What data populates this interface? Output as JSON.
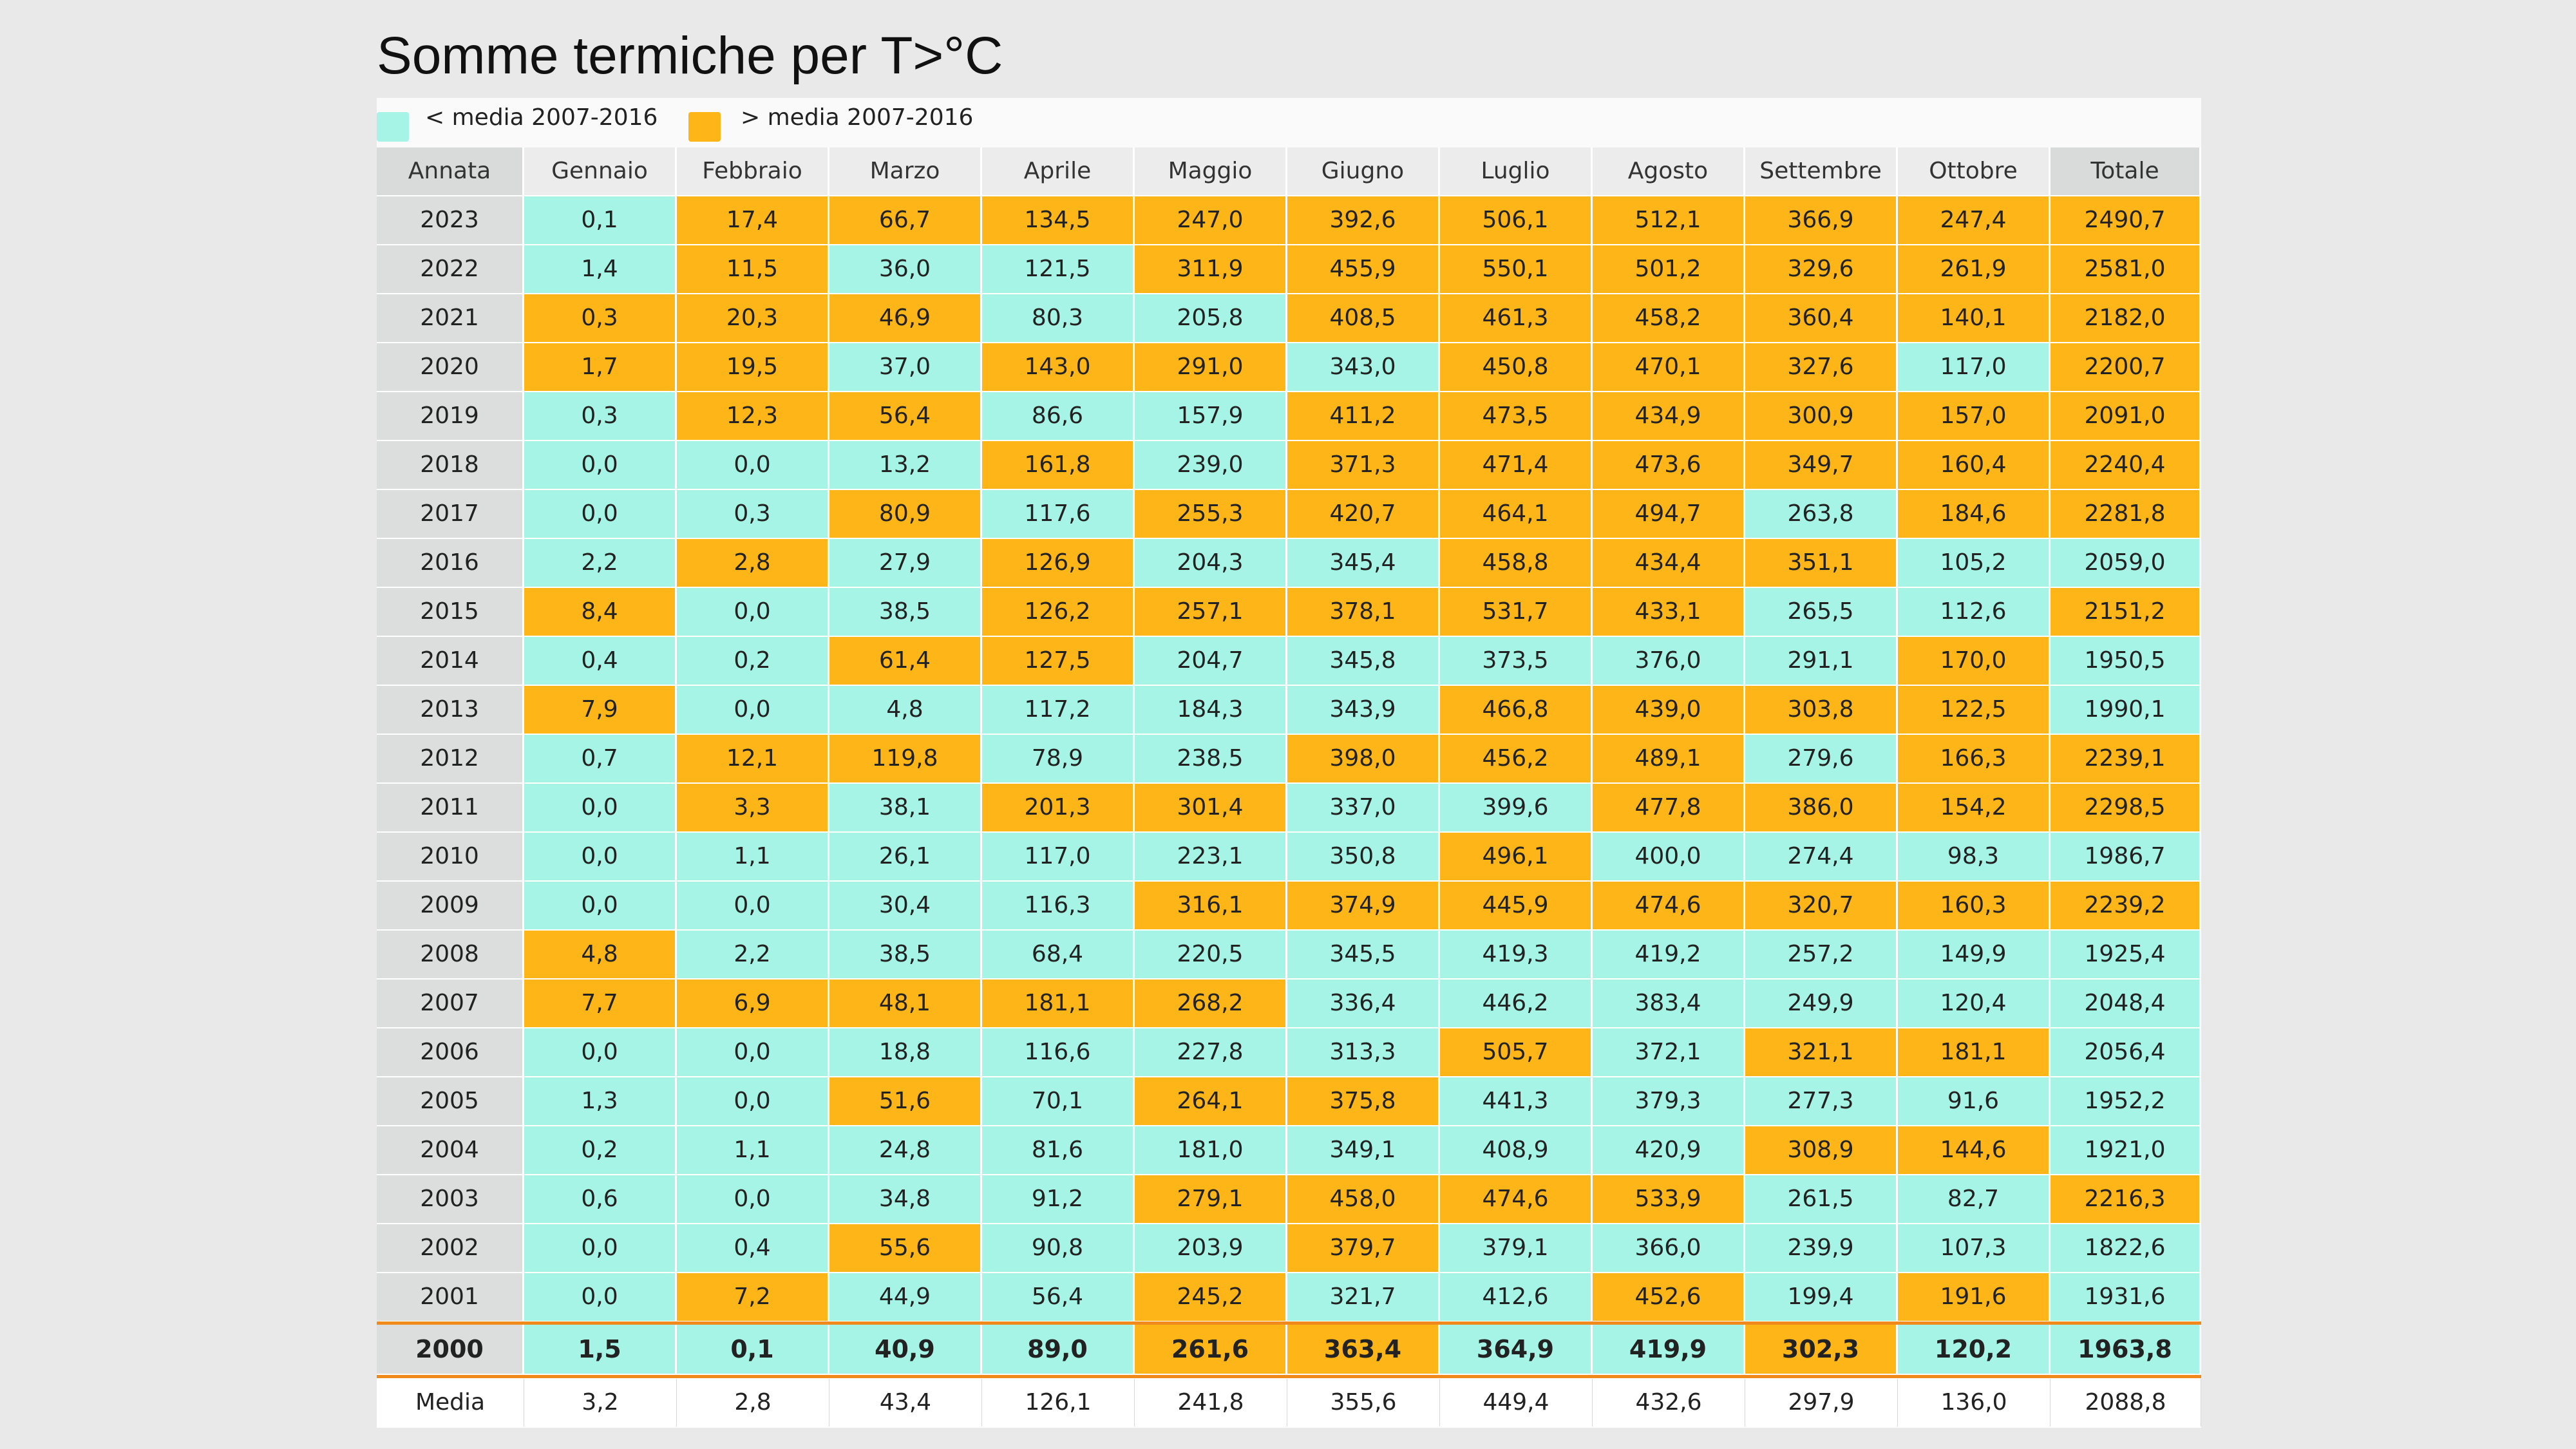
{
  "title": "Somme termiche per T>°C",
  "legend": {
    "below_label": "< media 2007-2016",
    "above_label": "> media 2007-2016"
  },
  "colors": {
    "below": "#a6f4e6",
    "above": "#fdb517",
    "header": "#ececec",
    "year_column": "#dcdedd",
    "separator": "#f08a1c"
  },
  "chart_data": {
    "type": "table",
    "title": "Somme termiche per T>°C",
    "columns": [
      "Annata",
      "Gennaio",
      "Febbraio",
      "Marzo",
      "Aprile",
      "Maggio",
      "Giugno",
      "Luglio",
      "Agosto",
      "Settembre",
      "Ottobre",
      "Totale"
    ],
    "legend": [
      {
        "key": "below",
        "label": "< media 2007-2016"
      },
      {
        "key": "above",
        "label": "> media 2007-2016"
      }
    ],
    "rows": [
      {
        "year": "2023",
        "values": [
          "0,1",
          "17,4",
          "66,7",
          "134,5",
          "247,0",
          "392,6",
          "506,1",
          "512,1",
          "366,9",
          "247,4",
          "2490,7"
        ],
        "highlight": [
          "below",
          "above",
          "above",
          "above",
          "above",
          "above",
          "above",
          "above",
          "above",
          "above",
          "above"
        ]
      },
      {
        "year": "2022",
        "values": [
          "1,4",
          "11,5",
          "36,0",
          "121,5",
          "311,9",
          "455,9",
          "550,1",
          "501,2",
          "329,6",
          "261,9",
          "2581,0"
        ],
        "highlight": [
          "below",
          "above",
          "below",
          "below",
          "above",
          "above",
          "above",
          "above",
          "above",
          "above",
          "above"
        ]
      },
      {
        "year": "2021",
        "values": [
          "0,3",
          "20,3",
          "46,9",
          "80,3",
          "205,8",
          "408,5",
          "461,3",
          "458,2",
          "360,4",
          "140,1",
          "2182,0"
        ],
        "highlight": [
          "above",
          "above",
          "above",
          "below",
          "below",
          "above",
          "above",
          "above",
          "above",
          "above",
          "above"
        ]
      },
      {
        "year": "2020",
        "values": [
          "1,7",
          "19,5",
          "37,0",
          "143,0",
          "291,0",
          "343,0",
          "450,8",
          "470,1",
          "327,6",
          "117,0",
          "2200,7"
        ],
        "highlight": [
          "above",
          "above",
          "below",
          "above",
          "above",
          "below",
          "above",
          "above",
          "above",
          "below",
          "above"
        ]
      },
      {
        "year": "2019",
        "values": [
          "0,3",
          "12,3",
          "56,4",
          "86,6",
          "157,9",
          "411,2",
          "473,5",
          "434,9",
          "300,9",
          "157,0",
          "2091,0"
        ],
        "highlight": [
          "below",
          "above",
          "above",
          "below",
          "below",
          "above",
          "above",
          "above",
          "above",
          "above",
          "above"
        ]
      },
      {
        "year": "2018",
        "values": [
          "0,0",
          "0,0",
          "13,2",
          "161,8",
          "239,0",
          "371,3",
          "471,4",
          "473,6",
          "349,7",
          "160,4",
          "2240,4"
        ],
        "highlight": [
          "below",
          "below",
          "below",
          "above",
          "below",
          "above",
          "above",
          "above",
          "above",
          "above",
          "above"
        ]
      },
      {
        "year": "2017",
        "values": [
          "0,0",
          "0,3",
          "80,9",
          "117,6",
          "255,3",
          "420,7",
          "464,1",
          "494,7",
          "263,8",
          "184,6",
          "2281,8"
        ],
        "highlight": [
          "below",
          "below",
          "above",
          "below",
          "above",
          "above",
          "above",
          "above",
          "below",
          "above",
          "above"
        ]
      },
      {
        "year": "2016",
        "values": [
          "2,2",
          "2,8",
          "27,9",
          "126,9",
          "204,3",
          "345,4",
          "458,8",
          "434,4",
          "351,1",
          "105,2",
          "2059,0"
        ],
        "highlight": [
          "below",
          "above",
          "below",
          "above",
          "below",
          "below",
          "above",
          "above",
          "above",
          "below",
          "below"
        ]
      },
      {
        "year": "2015",
        "values": [
          "8,4",
          "0,0",
          "38,5",
          "126,2",
          "257,1",
          "378,1",
          "531,7",
          "433,1",
          "265,5",
          "112,6",
          "2151,2"
        ],
        "highlight": [
          "above",
          "below",
          "below",
          "above",
          "above",
          "above",
          "above",
          "above",
          "below",
          "below",
          "above"
        ]
      },
      {
        "year": "2014",
        "values": [
          "0,4",
          "0,2",
          "61,4",
          "127,5",
          "204,7",
          "345,8",
          "373,5",
          "376,0",
          "291,1",
          "170,0",
          "1950,5"
        ],
        "highlight": [
          "below",
          "below",
          "above",
          "above",
          "below",
          "below",
          "below",
          "below",
          "below",
          "above",
          "below"
        ]
      },
      {
        "year": "2013",
        "values": [
          "7,9",
          "0,0",
          "4,8",
          "117,2",
          "184,3",
          "343,9",
          "466,8",
          "439,0",
          "303,8",
          "122,5",
          "1990,1"
        ],
        "highlight": [
          "above",
          "below",
          "below",
          "below",
          "below",
          "below",
          "above",
          "above",
          "above",
          "above",
          "below"
        ]
      },
      {
        "year": "2012",
        "values": [
          "0,7",
          "12,1",
          "119,8",
          "78,9",
          "238,5",
          "398,0",
          "456,2",
          "489,1",
          "279,6",
          "166,3",
          "2239,1"
        ],
        "highlight": [
          "below",
          "above",
          "above",
          "below",
          "below",
          "above",
          "above",
          "above",
          "below",
          "above",
          "above"
        ]
      },
      {
        "year": "2011",
        "values": [
          "0,0",
          "3,3",
          "38,1",
          "201,3",
          "301,4",
          "337,0",
          "399,6",
          "477,8",
          "386,0",
          "154,2",
          "2298,5"
        ],
        "highlight": [
          "below",
          "above",
          "below",
          "above",
          "above",
          "below",
          "below",
          "above",
          "above",
          "above",
          "above"
        ]
      },
      {
        "year": "2010",
        "values": [
          "0,0",
          "1,1",
          "26,1",
          "117,0",
          "223,1",
          "350,8",
          "496,1",
          "400,0",
          "274,4",
          "98,3",
          "1986,7"
        ],
        "highlight": [
          "below",
          "below",
          "below",
          "below",
          "below",
          "below",
          "above",
          "below",
          "below",
          "below",
          "below"
        ]
      },
      {
        "year": "2009",
        "values": [
          "0,0",
          "0,0",
          "30,4",
          "116,3",
          "316,1",
          "374,9",
          "445,9",
          "474,6",
          "320,7",
          "160,3",
          "2239,2"
        ],
        "highlight": [
          "below",
          "below",
          "below",
          "below",
          "above",
          "above",
          "above",
          "above",
          "above",
          "above",
          "above"
        ]
      },
      {
        "year": "2008",
        "values": [
          "4,8",
          "2,2",
          "38,5",
          "68,4",
          "220,5",
          "345,5",
          "419,3",
          "419,2",
          "257,2",
          "149,9",
          "1925,4"
        ],
        "highlight": [
          "above",
          "below",
          "below",
          "below",
          "below",
          "below",
          "below",
          "below",
          "below",
          "below",
          "below"
        ]
      },
      {
        "year": "2007",
        "values": [
          "7,7",
          "6,9",
          "48,1",
          "181,1",
          "268,2",
          "336,4",
          "446,2",
          "383,4",
          "249,9",
          "120,4",
          "2048,4"
        ],
        "highlight": [
          "above",
          "above",
          "above",
          "above",
          "above",
          "below",
          "below",
          "below",
          "below",
          "below",
          "below"
        ]
      },
      {
        "year": "2006",
        "values": [
          "0,0",
          "0,0",
          "18,8",
          "116,6",
          "227,8",
          "313,3",
          "505,7",
          "372,1",
          "321,1",
          "181,1",
          "2056,4"
        ],
        "highlight": [
          "below",
          "below",
          "below",
          "below",
          "below",
          "below",
          "above",
          "below",
          "above",
          "above",
          "below"
        ]
      },
      {
        "year": "2005",
        "values": [
          "1,3",
          "0,0",
          "51,6",
          "70,1",
          "264,1",
          "375,8",
          "441,3",
          "379,3",
          "277,3",
          "91,6",
          "1952,2"
        ],
        "highlight": [
          "below",
          "below",
          "above",
          "below",
          "above",
          "above",
          "below",
          "below",
          "below",
          "below",
          "below"
        ]
      },
      {
        "year": "2004",
        "values": [
          "0,2",
          "1,1",
          "24,8",
          "81,6",
          "181,0",
          "349,1",
          "408,9",
          "420,9",
          "308,9",
          "144,6",
          "1921,0"
        ],
        "highlight": [
          "below",
          "below",
          "below",
          "below",
          "below",
          "below",
          "below",
          "below",
          "above",
          "above",
          "below"
        ]
      },
      {
        "year": "2003",
        "values": [
          "0,6",
          "0,0",
          "34,8",
          "91,2",
          "279,1",
          "458,0",
          "474,6",
          "533,9",
          "261,5",
          "82,7",
          "2216,3"
        ],
        "highlight": [
          "below",
          "below",
          "below",
          "below",
          "above",
          "above",
          "above",
          "above",
          "below",
          "below",
          "above"
        ]
      },
      {
        "year": "2002",
        "values": [
          "0,0",
          "0,4",
          "55,6",
          "90,8",
          "203,9",
          "379,7",
          "379,1",
          "366,0",
          "239,9",
          "107,3",
          "1822,6"
        ],
        "highlight": [
          "below",
          "below",
          "above",
          "below",
          "below",
          "above",
          "below",
          "below",
          "below",
          "below",
          "below"
        ]
      },
      {
        "year": "2001",
        "values": [
          "0,0",
          "7,2",
          "44,9",
          "56,4",
          "245,2",
          "321,7",
          "412,6",
          "452,6",
          "199,4",
          "191,6",
          "1931,6"
        ],
        "highlight": [
          "below",
          "above",
          "below",
          "below",
          "above",
          "below",
          "below",
          "above",
          "below",
          "above",
          "below"
        ]
      },
      {
        "year": "2000",
        "values": [
          "1,5",
          "0,1",
          "40,9",
          "89,0",
          "261,6",
          "363,4",
          "364,9",
          "419,9",
          "302,3",
          "120,2",
          "1963,8"
        ],
        "highlight": [
          "below",
          "below",
          "below",
          "below",
          "above",
          "above",
          "below",
          "below",
          "above",
          "below",
          "below"
        ],
        "bold": true
      }
    ],
    "media": {
      "label": "Media",
      "values": [
        "3,2",
        "2,8",
        "43,4",
        "126,1",
        "241,8",
        "355,6",
        "449,4",
        "432,6",
        "297,9",
        "136,0",
        "2088,8"
      ]
    }
  }
}
